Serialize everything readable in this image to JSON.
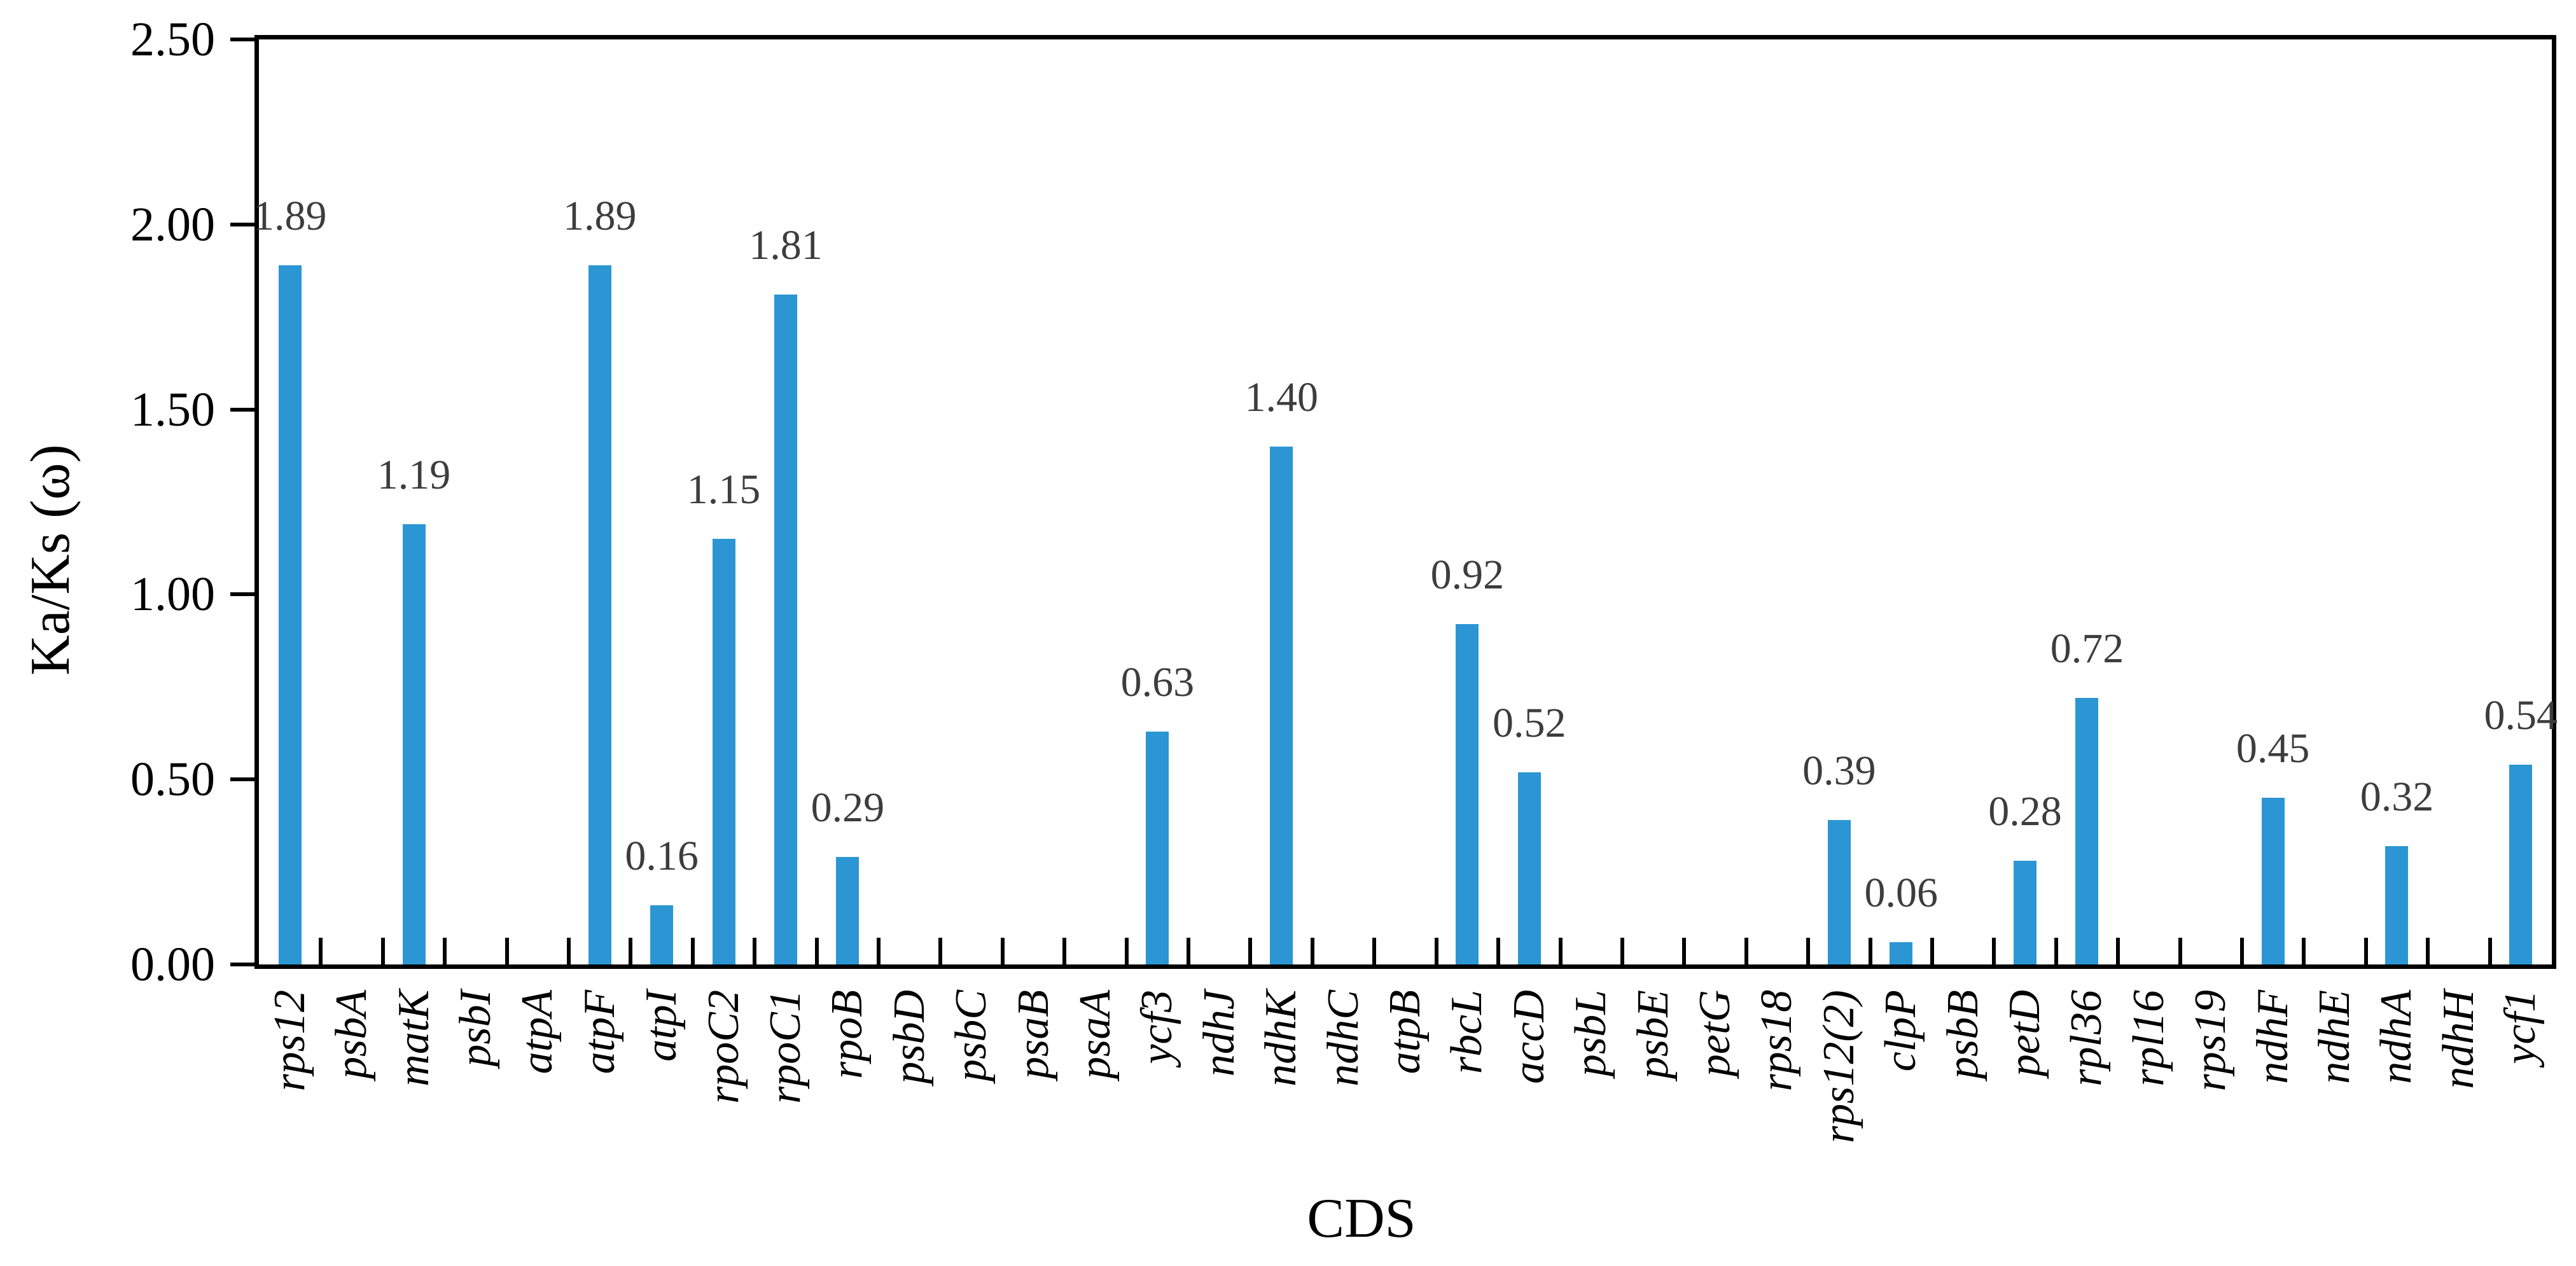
{
  "chart_data": {
    "type": "bar",
    "title": "",
    "xlabel": "CDS",
    "ylabel": "Ka/Ks (ω)",
    "ylim": [
      0,
      2.5
    ],
    "ytick_step": 0.5,
    "ytick_labels": [
      "0.00",
      "0.50",
      "1.00",
      "1.50",
      "2.00",
      "2.50"
    ],
    "grid": false,
    "legend": "none",
    "bar_color": "#2b96d3",
    "axis_color": "#000000",
    "value_label_color": "#3d3d3d",
    "categories": [
      "rps12",
      "psbA",
      "matK",
      "psbI",
      "atpA",
      "atpF",
      "atpI",
      "rpoC2",
      "rpoC1",
      "rpoB",
      "psbD",
      "psbC",
      "psaB",
      "psaA",
      "ycf3",
      "ndhJ",
      "ndhK",
      "ndhC",
      "atpB",
      "rbcL",
      "accD",
      "psbL",
      "psbE",
      "petG",
      "rps18",
      "rps12(2)",
      "clpP",
      "psbB",
      "petD",
      "rpl36",
      "rpl16",
      "rps19",
      "ndhF",
      "ndhE",
      "ndhA",
      "ndhH",
      "ycf1"
    ],
    "values": [
      1.89,
      0,
      1.19,
      0,
      0,
      1.89,
      0.16,
      1.15,
      1.81,
      0.29,
      0,
      0,
      0,
      0,
      0.63,
      0,
      1.4,
      0,
      0,
      0.92,
      0.52,
      0,
      0,
      0,
      0,
      0.39,
      0.06,
      0,
      0.28,
      0.72,
      0,
      0,
      0.45,
      0,
      0.32,
      0,
      0.54
    ],
    "data_labels": [
      "1.89",
      "",
      "1.19",
      "",
      "",
      "1.89",
      "0.16",
      "1.15",
      "1.81",
      "0.29",
      "",
      "",
      "",
      "",
      "0.63",
      "",
      "1.40",
      "",
      "",
      "0.92",
      "0.52",
      "",
      "",
      "",
      "",
      "0.39",
      "0.06",
      "",
      "0.28",
      "0.72",
      "",
      "",
      "0.45",
      "",
      "0.32",
      "",
      "0.54"
    ]
  }
}
